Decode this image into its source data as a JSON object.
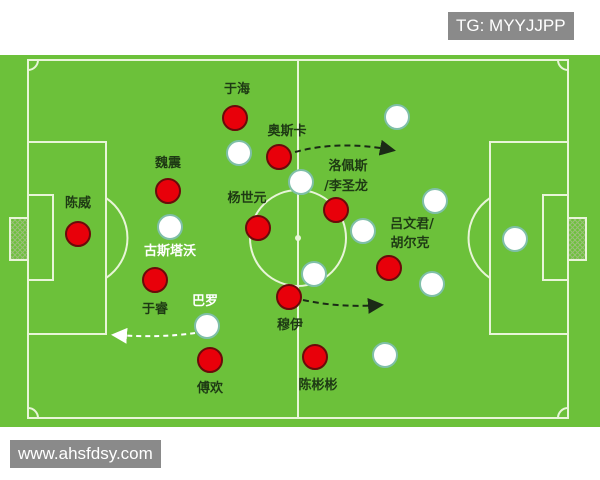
{
  "watermark_top": "TG: MYYJJPP",
  "watermark_bottom": "www.ahsfdsy.com",
  "colors": {
    "pitch": "#6cc13a",
    "lines": "#e8f5d8",
    "team_red": "#e8000a",
    "team_white": "#ffffff",
    "label_dark": "#1e3a14",
    "label_light": "#ffffff"
  },
  "red_players": [
    {
      "name": "于海"
    },
    {
      "name": "奥斯卡"
    },
    {
      "name": "魏震"
    },
    {
      "name": "陈威"
    },
    {
      "name": "杨世元"
    },
    {
      "name": "洛佩斯",
      "name2": "/李圣龙"
    },
    {
      "name": "吕文君/",
      "name2": "胡尔克"
    },
    {
      "name": "于睿"
    },
    {
      "name": "穆伊"
    },
    {
      "name": "傅欢"
    },
    {
      "name": "陈彬彬"
    }
  ],
  "white_players": [
    {
      "name": "古斯塔沃"
    },
    {
      "name": "巴罗"
    }
  ]
}
